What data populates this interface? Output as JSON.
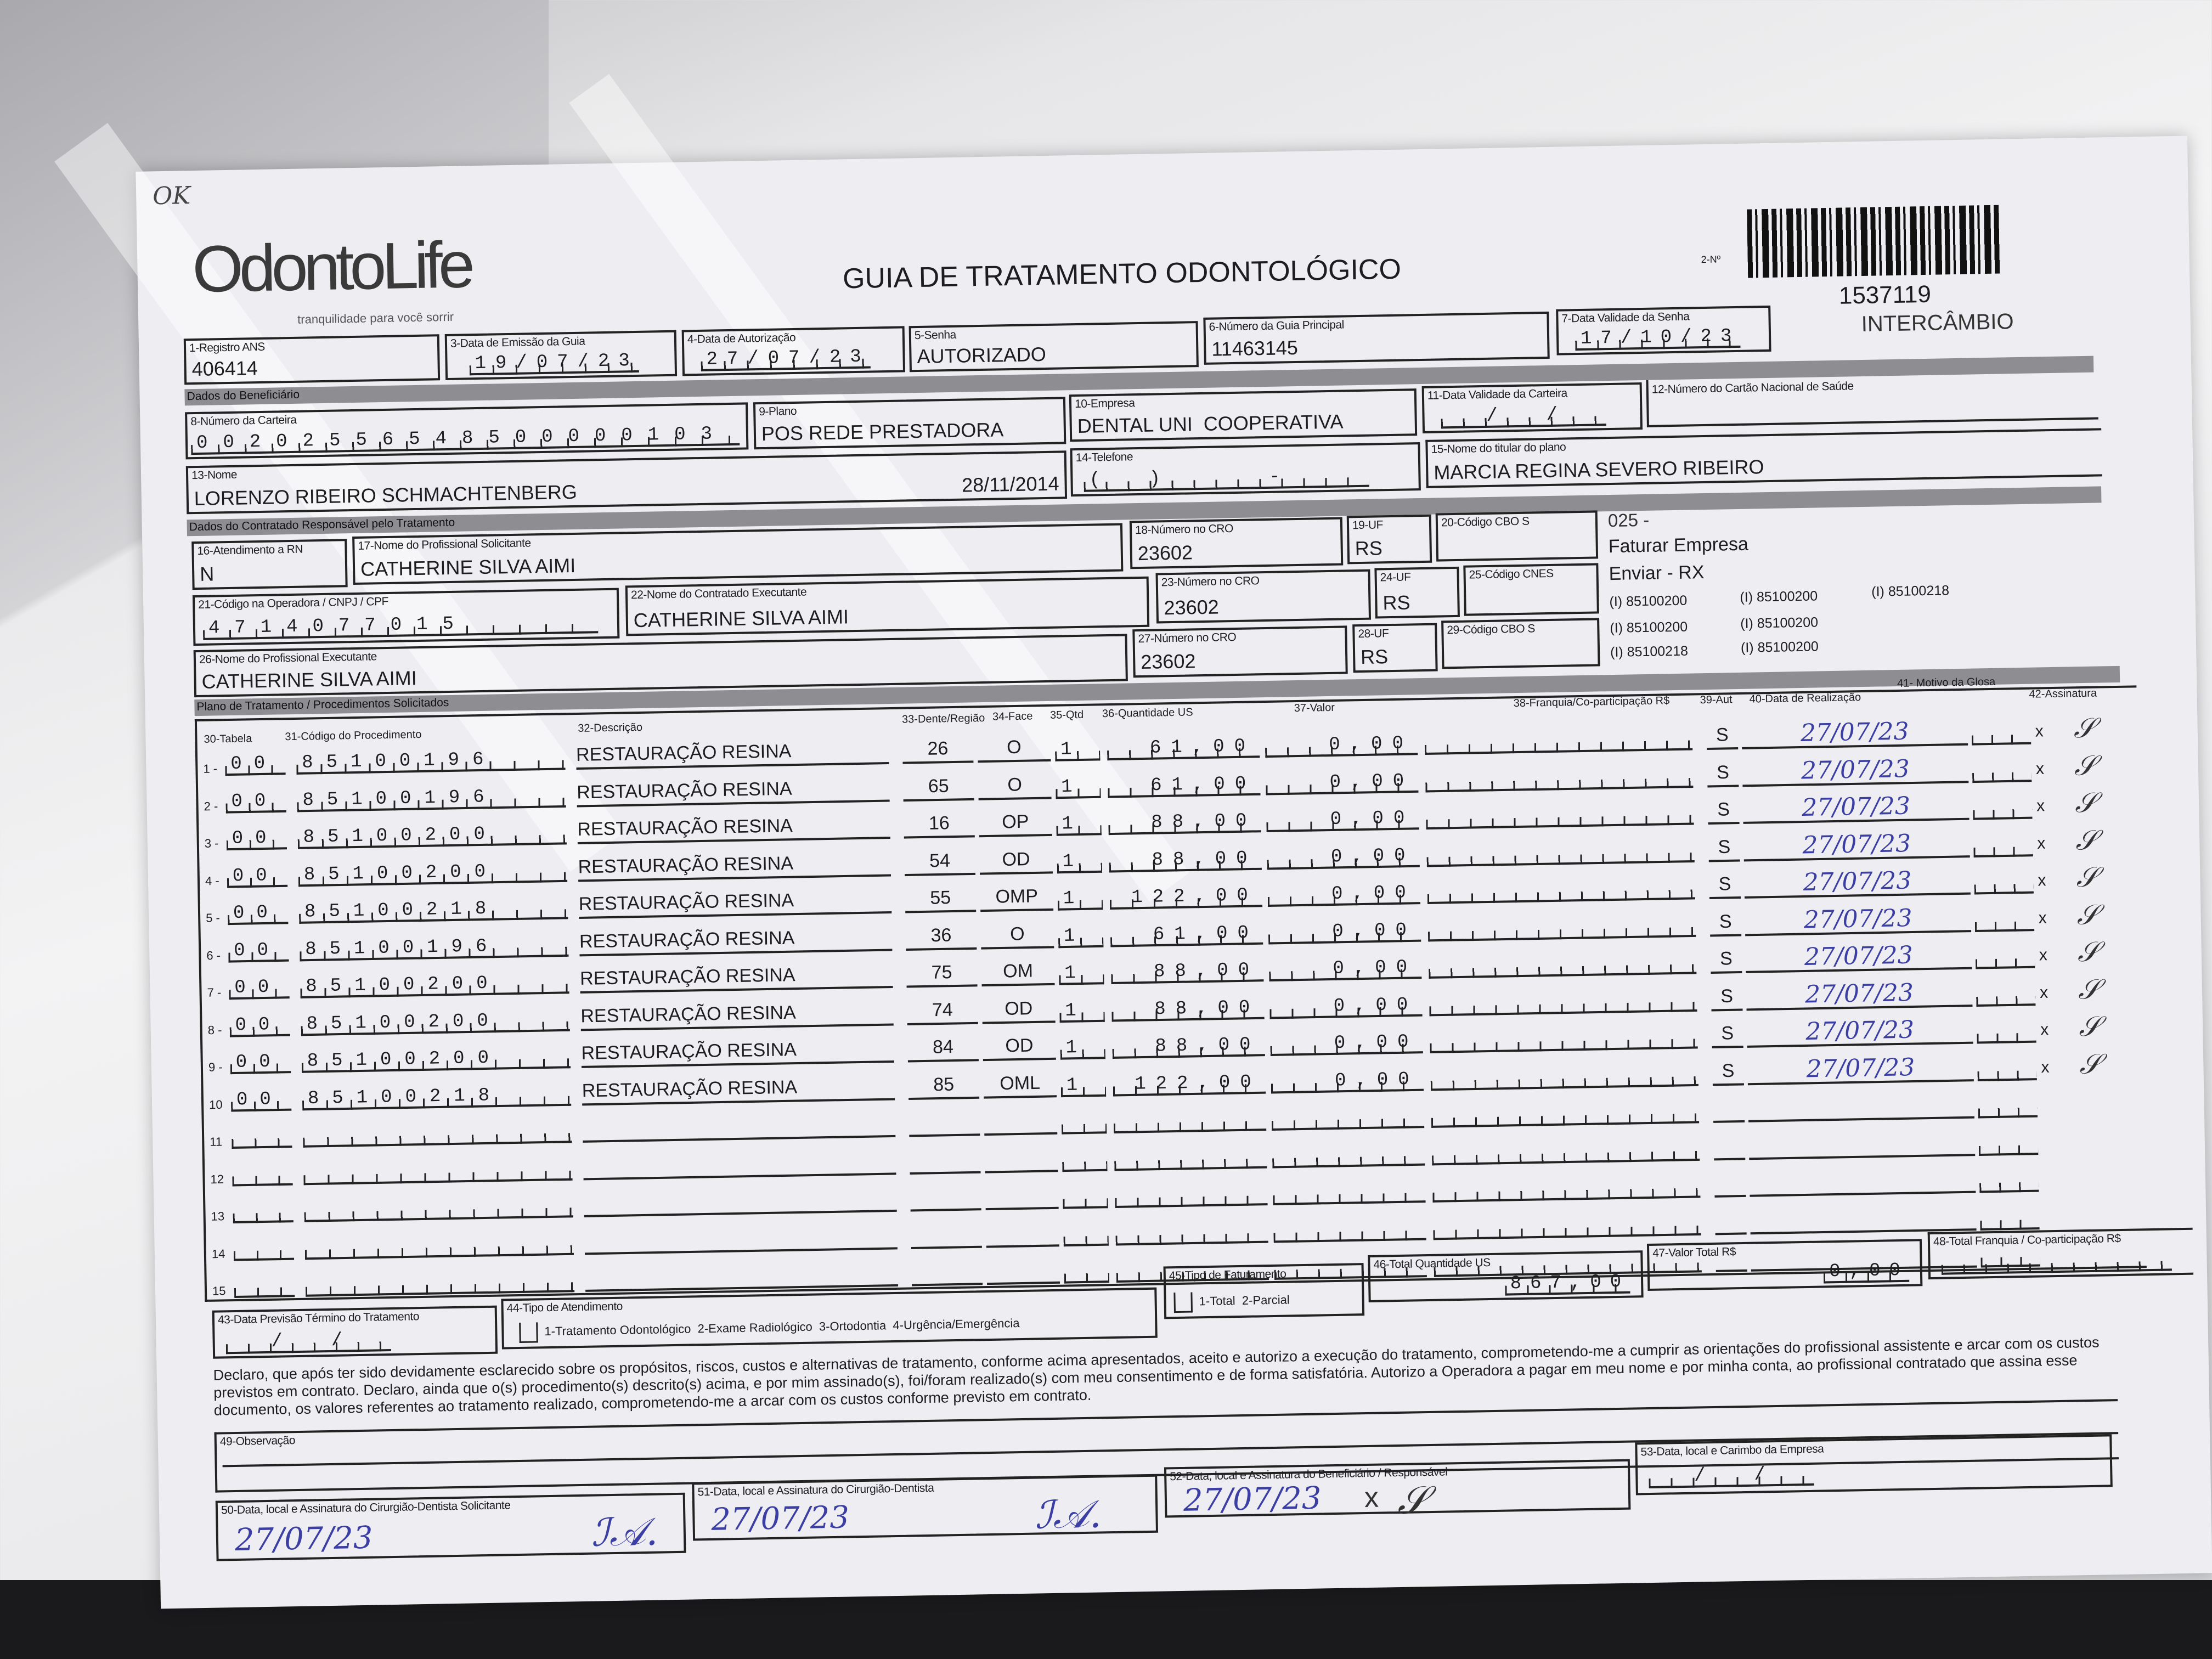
{
  "handwritten_note": "OK",
  "header": {
    "logo": "OdontoLife",
    "logo_tagline": "tranquilidade para você sorrir",
    "title": "GUIA DE TRATAMENTO ODONTOLÓGICO",
    "numero_label": "2-Nº",
    "guia_numero": "1537119",
    "intercambio": "INTERCÂMBIO"
  },
  "fields": {
    "registro_ans": {
      "label": "1-Registro ANS",
      "value": "406414"
    },
    "data_emissao": {
      "label": "3-Data de Emissão da Guia",
      "value": "19/07/23"
    },
    "data_autorizacao": {
      "label": "4-Data de Autorização",
      "value": "27/07/23"
    },
    "senha": {
      "label": "5-Senha",
      "value": "AUTORIZADO"
    },
    "guia_principal": {
      "label": "6-Número da Guia Principal",
      "value": "11463145"
    },
    "validade_senha": {
      "label": "7-Data Validade da Senha",
      "value": "17/10/23"
    },
    "numero_carteira": {
      "label": "8-Número da Carteira",
      "value": "00202556548500000103"
    },
    "plano": {
      "label": "9-Plano",
      "value": "POS REDE PRESTADORA"
    },
    "empresa": {
      "label": "10-Empresa",
      "value": "DENTAL UNI  COOPERATIVA"
    },
    "validade_carteira": {
      "label": "11-Data Validade da Carteira",
      "value": "  /  /  "
    },
    "cartao_nacional": {
      "label": "12-Número do Cartão Nacional de Saúde",
      "value": ""
    },
    "nome": {
      "label": "13-Nome",
      "value": "LORENZO RIBEIRO SCHMACHTENBERG",
      "birth_date": "28/11/2014"
    },
    "telefone": {
      "label": "14-Telefone",
      "value": "(  )     -    "
    },
    "titular": {
      "label": "15-Nome do titular do plano",
      "value": "MARCIA REGINA SEVERO RIBEIRO"
    },
    "atendimento_rn": {
      "label": "16-Atendimento a RN",
      "value": "N"
    },
    "profissional_solicitante": {
      "label": "17-Nome do Profissional Solicitante",
      "value": "CATHERINE SILVA AIMI"
    },
    "cro_18": {
      "label": "18-Número no CRO",
      "value": "23602"
    },
    "uf_19": {
      "label": "19-UF",
      "value": "RS"
    },
    "cbo_20": {
      "label": "20-Código CBO S",
      "value": ""
    },
    "codigo_operadora": {
      "label": "21-Código na Operadora / CNPJ / CPF",
      "value": "4714077015"
    },
    "contratado_executante": {
      "label": "22-Nome do Contratado Executante",
      "value": "CATHERINE SILVA AIMI"
    },
    "cro_23": {
      "label": "23-Número no CRO",
      "value": "23602"
    },
    "uf_24": {
      "label": "24-UF",
      "value": "RS"
    },
    "cnes_25": {
      "label": "25-Código CNES",
      "value": ""
    },
    "profissional_executante": {
      "label": "26-Nome do Profissional Executante",
      "value": "CATHERINE SILVA AIMI"
    },
    "cro_27": {
      "label": "27-Número no CRO",
      "value": "23602"
    },
    "uf_28": {
      "label": "28-UF",
      "value": "RS"
    },
    "cbo_29": {
      "label": "29-Código CBO S",
      "value": ""
    }
  },
  "sections": {
    "beneficiario": "Dados do Beneficiário",
    "contratado": "Dados do Contratado Responsável pelo Tratamento",
    "plano": "Plano de Tratamento / Procedimentos Solicitados"
  },
  "notes": {
    "line1": "025 -",
    "line2": "Faturar Empresa",
    "line3": "Enviar - RX",
    "codes": [
      "(I) 85100200",
      "(I) 85100200",
      "(I) 85100218",
      "(I) 85100200",
      "(I) 85100200",
      "(I) 85100218",
      "(I) 85100200"
    ]
  },
  "table": {
    "headers": {
      "tabela": "30-Tabela",
      "codigo": "31-Código do Procedimento",
      "descricao": "32-Descrição",
      "dente": "33-Dente/Região",
      "face": "34-Face",
      "qtd": "35-Qtd",
      "qtd_us": "36-Quantidade US",
      "valor": "37-Valor",
      "franquia": "38-Franquia/Co-participação R$",
      "aut": "39-Aut",
      "data": "40-Data de Realização",
      "glosa": "41- Motivo da Glosa",
      "assinatura": "42-Assinatura"
    },
    "rows": [
      {
        "n": "1 -",
        "tabela": "00",
        "codigo": "85100196",
        "descricao": "RESTAURAÇÃO RESINA",
        "dente": "26",
        "face": "O",
        "qtd": "1",
        "qtd_us": "61,00",
        "valor": "0,00",
        "aut": "S",
        "data": "27/07/23",
        "assinatura": "x"
      },
      {
        "n": "2 -",
        "tabela": "00",
        "codigo": "85100196",
        "descricao": "RESTAURAÇÃO RESINA",
        "dente": "65",
        "face": "O",
        "qtd": "1",
        "qtd_us": "61,00",
        "valor": "0,00",
        "aut": "S",
        "data": "27/07/23",
        "assinatura": "x"
      },
      {
        "n": "3 -",
        "tabela": "00",
        "codigo": "85100200",
        "descricao": "RESTAURAÇÃO RESINA",
        "dente": "16",
        "face": "OP",
        "qtd": "1",
        "qtd_us": "88,00",
        "valor": "0,00",
        "aut": "S",
        "data": "27/07/23",
        "assinatura": "x"
      },
      {
        "n": "4 -",
        "tabela": "00",
        "codigo": "85100200",
        "descricao": "RESTAURAÇÃO RESINA",
        "dente": "54",
        "face": "OD",
        "qtd": "1",
        "qtd_us": "88,00",
        "valor": "0,00",
        "aut": "S",
        "data": "27/07/23",
        "assinatura": "x"
      },
      {
        "n": "5 -",
        "tabela": "00",
        "codigo": "85100218",
        "descricao": "RESTAURAÇÃO RESINA",
        "dente": "55",
        "face": "OMP",
        "qtd": "1",
        "qtd_us": "122,00",
        "valor": "0,00",
        "aut": "S",
        "data": "27/07/23",
        "assinatura": "x"
      },
      {
        "n": "6 -",
        "tabela": "00",
        "codigo": "85100196",
        "descricao": "RESTAURAÇÃO RESINA",
        "dente": "36",
        "face": "O",
        "qtd": "1",
        "qtd_us": "61,00",
        "valor": "0,00",
        "aut": "S",
        "data": "27/07/23",
        "assinatura": "x"
      },
      {
        "n": "7 -",
        "tabela": "00",
        "codigo": "85100200",
        "descricao": "RESTAURAÇÃO RESINA",
        "dente": "75",
        "face": "OM",
        "qtd": "1",
        "qtd_us": "88,00",
        "valor": "0,00",
        "aut": "S",
        "data": "27/07/23",
        "assinatura": "x"
      },
      {
        "n": "8 -",
        "tabela": "00",
        "codigo": "85100200",
        "descricao": "RESTAURAÇÃO RESINA",
        "dente": "74",
        "face": "OD",
        "qtd": "1",
        "qtd_us": "88,00",
        "valor": "0,00",
        "aut": "S",
        "data": "27/07/23",
        "assinatura": "x"
      },
      {
        "n": "9 -",
        "tabela": "00",
        "codigo": "85100200",
        "descricao": "RESTAURAÇÃO RESINA",
        "dente": "84",
        "face": "OD",
        "qtd": "1",
        "qtd_us": "88,00",
        "valor": "0,00",
        "aut": "S",
        "data": "27/07/23",
        "assinatura": "x"
      },
      {
        "n": "10",
        "tabela": "00",
        "codigo": "85100218",
        "descricao": "RESTAURAÇÃO RESINA",
        "dente": "85",
        "face": "OML",
        "qtd": "1",
        "qtd_us": "122,00",
        "valor": "0,00",
        "aut": "S",
        "data": "27/07/23",
        "assinatura": "x"
      },
      {
        "n": "11"
      },
      {
        "n": "12"
      },
      {
        "n": "13"
      },
      {
        "n": "14"
      },
      {
        "n": "15"
      }
    ]
  },
  "totals": {
    "previsao_termino": {
      "label": "43-Data Previsão Término do Tratamento",
      "value": "  /  /  "
    },
    "tipo_atendimento": {
      "label": "44-Tipo de Atendimento",
      "options": "1-Tratamento Odontológico  2-Exame Radiológico  3-Ortodontia  4-Urgência/Emergência"
    },
    "tipo_faturamento": {
      "label": "45-Tipo de Faturamento",
      "options": "1-Total  2-Parcial"
    },
    "total_us": {
      "label": "46-Total Quantidade US",
      "value": "867,00"
    },
    "valor_total": {
      "label": "47-Valor Total R$",
      "value": "0,00"
    },
    "total_franquia": {
      "label": "48-Total Franquia / Co-participação R$",
      "value": ""
    }
  },
  "declaration": "Declaro, que após ter sido devidamente esclarecido sobre os propósitos, riscos, custos e alternativas de tratamento, conforme acima apresentados, aceito e autorizo a execução do tratamento, comprometendo-me a cumprir as orientações do profissional assistente e arcar com os custos previstos em contrato. Declaro, ainda que o(s) procedimento(s) descrito(s) acima, e por mim assinado(s), foi/foram realizado(s) com meu consentimento e de forma satisfatória. Autorizo a Operadora a pagar em meu nome e por minha conta, ao profissional contratado que assina esse documento, os valores referentes ao tratamento realizado, comprometendo-me a arcar com os custos conforme previsto em contrato.",
  "observacao": {
    "label": "49-Observação",
    "value": ""
  },
  "signatures": {
    "s50": {
      "label": "50-Data, local e Assinatura do Cirurgião-Dentista Solicitante",
      "date": "27/07/23"
    },
    "s51": {
      "label": "51-Data, local e Assinatura do Cirurgião-Dentista",
      "date": "27/07/23"
    },
    "s52": {
      "label": "52-Data, local e Assinatura do Beneficiário / Responsável",
      "date": "27/07/23",
      "mark": "x"
    },
    "s53": {
      "label": "53-Data, local e Carimbo da Empresa",
      "date": "  /  /  "
    }
  },
  "colors": {
    "ink": "#1d1d1f",
    "pen": "#3b3fa3",
    "section_bar": "#8e8e92",
    "paper": "#eeedf1"
  }
}
